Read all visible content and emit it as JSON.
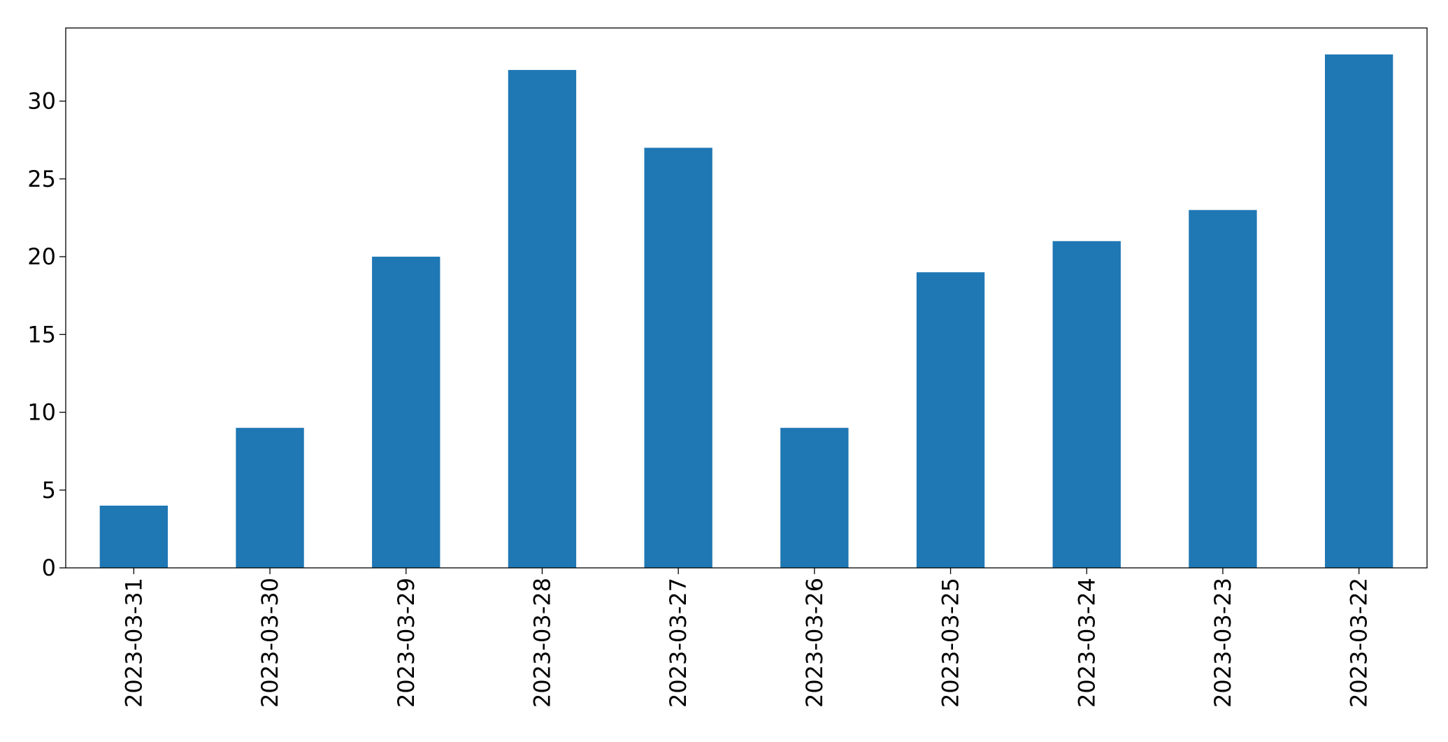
{
  "chart_data": {
    "type": "bar",
    "categories": [
      "2023-03-31",
      "2023-03-30",
      "2023-03-29",
      "2023-03-28",
      "2023-03-27",
      "2023-03-26",
      "2023-03-25",
      "2023-03-24",
      "2023-03-23",
      "2023-03-22"
    ],
    "values": [
      4,
      9,
      20,
      32,
      27,
      9,
      19,
      21,
      23,
      33
    ],
    "color": "#1f77b4",
    "ylim": [
      0,
      34.7
    ],
    "yticks": [
      0,
      5,
      10,
      15,
      20,
      25,
      30
    ],
    "grid": false
  }
}
